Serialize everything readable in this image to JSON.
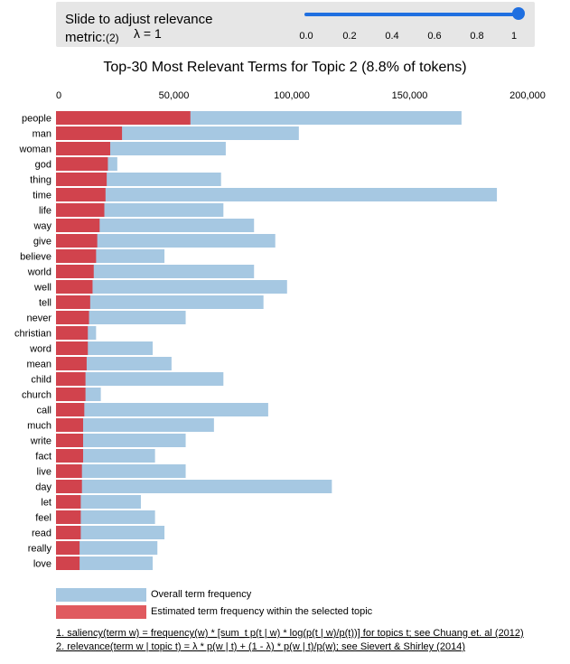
{
  "slider": {
    "label_line1": "Slide to adjust relevance",
    "label_line2": "metric:",
    "label_suffix": "(2)",
    "lambda_label": "λ = 1",
    "value": 1,
    "ticks": [
      "0.0",
      "0.2",
      "0.4",
      "0.6",
      "0.8",
      "1"
    ]
  },
  "title": "Top-30 Most Relevant Terms for Topic 2 (8.8% of tokens)",
  "legend": {
    "overall_label": "Overall term frequency",
    "topic_label": "Estimated term frequency within the selected topic"
  },
  "footnotes": {
    "note1": "1. saliency(term w) = frequency(w) * [sum_t p(t | w) * log(p(t | w)/p(t))] for topics t; see Chuang et. al (2012)",
    "note2": "2. relevance(term w | topic t) = λ * p(w | t) + (1 - λ) * p(w | t)/p(w); see Sievert & Shirley (2014)"
  },
  "colors": {
    "overall": "#a6c8e2",
    "topic": "#d1434d",
    "slider": "#1f6fe0"
  },
  "chart_data": {
    "type": "bar",
    "orientation": "horizontal",
    "xlim": [
      0,
      200000
    ],
    "xticks": [
      0,
      50000,
      100000,
      150000,
      200000
    ],
    "xtick_labels": [
      "0",
      "50,000",
      "100,000",
      "150,000",
      "200,000"
    ],
    "categories": [
      "people",
      "man",
      "woman",
      "god",
      "thing",
      "time",
      "life",
      "way",
      "give",
      "believe",
      "world",
      "well",
      "tell",
      "never",
      "christian",
      "word",
      "mean",
      "child",
      "church",
      "call",
      "much",
      "write",
      "fact",
      "live",
      "day",
      "let",
      "feel",
      "read",
      "really",
      "love"
    ],
    "series": [
      {
        "name": "Overall term frequency",
        "values": [
          172000,
          103000,
          72000,
          26000,
          70000,
          187000,
          71000,
          84000,
          93000,
          46000,
          84000,
          98000,
          88000,
          55000,
          17000,
          41000,
          49000,
          71000,
          19000,
          90000,
          67000,
          55000,
          42000,
          55000,
          117000,
          36000,
          42000,
          46000,
          43000,
          41000
        ]
      },
      {
        "name": "Estimated term frequency within the selected topic",
        "values": [
          57000,
          28000,
          23000,
          22000,
          21500,
          21000,
          20500,
          18500,
          17500,
          17000,
          16000,
          15500,
          14500,
          14000,
          13500,
          13500,
          13000,
          12500,
          12500,
          12000,
          11500,
          11500,
          11500,
          11000,
          11000,
          10500,
          10500,
          10500,
          10000,
          10000
        ]
      }
    ]
  }
}
